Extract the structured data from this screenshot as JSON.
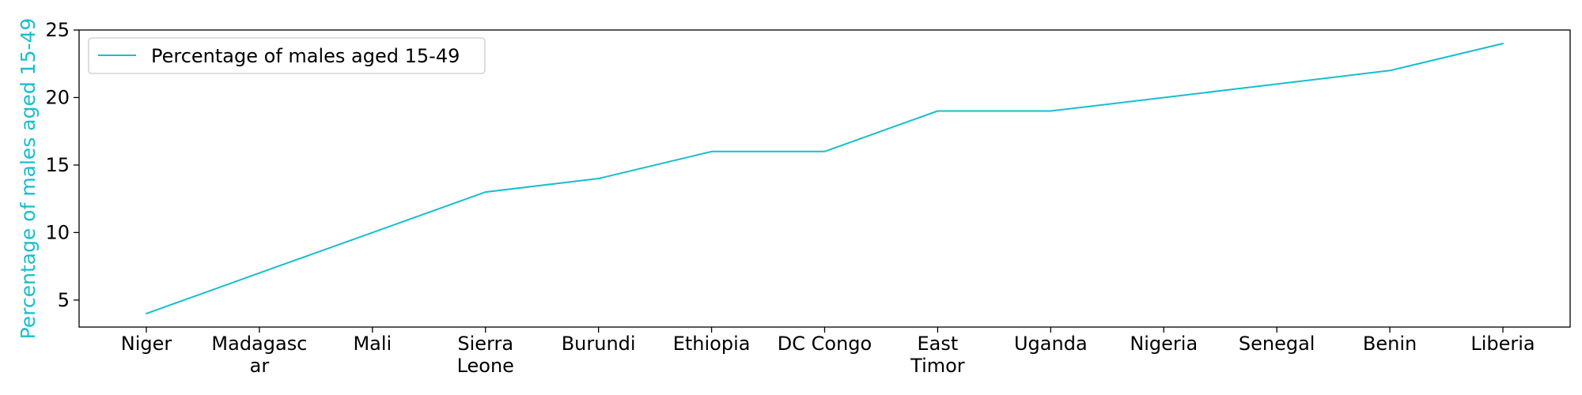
{
  "chart_data": {
    "type": "line",
    "categories": [
      "Niger",
      "Madagascar",
      "Mali",
      "Sierra Leone",
      "Burundi",
      "Ethiopia",
      "DC Congo",
      "East Timor",
      "Uganda",
      "Nigeria",
      "Senegal",
      "Benin",
      "Liberia"
    ],
    "category_label_lines": [
      [
        "Niger"
      ],
      [
        "Madagasc",
        "ar"
      ],
      [
        "Mali"
      ],
      [
        "Sierra",
        "Leone"
      ],
      [
        "Burundi"
      ],
      [
        "Ethiopia"
      ],
      [
        "DC Congo"
      ],
      [
        "East",
        "Timor"
      ],
      [
        "Uganda"
      ],
      [
        "Nigeria"
      ],
      [
        "Senegal"
      ],
      [
        "Benin"
      ],
      [
        "Liberia"
      ]
    ],
    "series": [
      {
        "name": "Percentage of males aged 15-49",
        "values": [
          4,
          7,
          10,
          13,
          14,
          16,
          16,
          19,
          19,
          20,
          21,
          22,
          24
        ],
        "color": "#17becf"
      }
    ],
    "xlabel": "",
    "ylabel": "Percentage of males aged 15-49",
    "ylabel_color": "#17becf",
    "ylim": [
      3,
      25
    ],
    "yticks": [
      5,
      10,
      15,
      20,
      25
    ],
    "grid": false,
    "legend_position": "top-left"
  }
}
